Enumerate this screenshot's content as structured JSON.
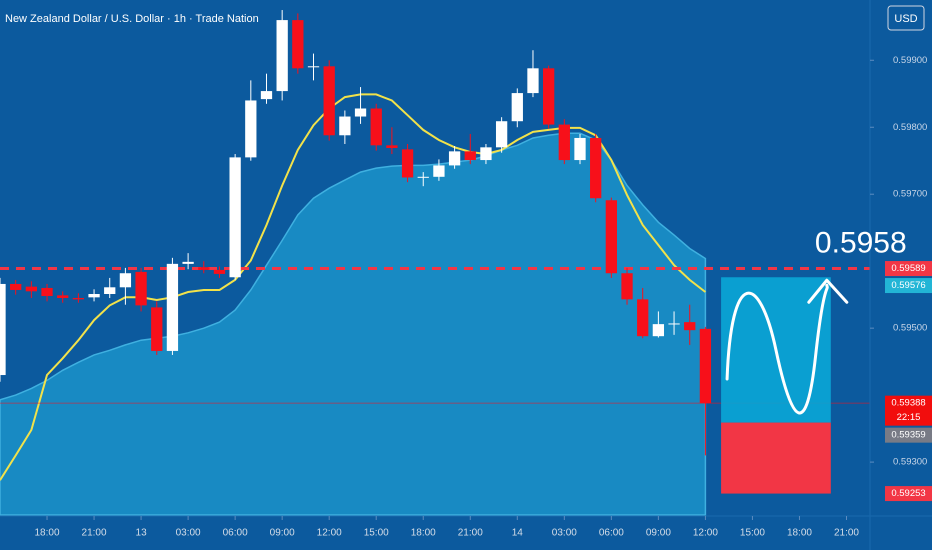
{
  "chart_data": {
    "type": "candlestick",
    "title": "New Zealand Dollar / U.S. Dollar · 1h · Trade Nation",
    "currency": "USD",
    "x": [
      -3,
      -2,
      -1,
      0,
      1,
      2,
      3,
      4,
      5,
      6,
      7,
      8,
      9,
      10,
      11,
      12,
      13,
      14,
      15,
      16,
      17,
      18,
      19,
      20,
      21,
      22,
      23,
      24,
      25,
      26,
      27,
      28,
      29,
      30,
      31,
      32,
      33,
      34,
      35,
      36,
      37,
      38,
      39,
      40,
      41,
      42
    ],
    "open": [
      0.5943,
      0.59566,
      0.59562,
      0.5956,
      0.59549,
      0.59545,
      0.59546,
      0.59551,
      0.59561,
      0.59584,
      0.59531,
      0.59466,
      0.59596,
      0.59591,
      0.59587,
      0.59576,
      0.59755,
      0.59842,
      0.59854,
      0.5996,
      0.5989,
      0.59891,
      0.59788,
      0.59816,
      0.59828,
      0.59773,
      0.59767,
      0.59725,
      0.59726,
      0.59743,
      0.59764,
      0.59751,
      0.5977,
      0.59809,
      0.59851,
      0.59888,
      0.59804,
      0.59751,
      0.59784,
      0.59691,
      0.59582,
      0.59543,
      0.59488,
      0.59506,
      0.59509,
      0.59499
    ],
    "high": [
      0.59575,
      0.59572,
      0.5957,
      0.59566,
      0.59555,
      0.59552,
      0.59558,
      0.59575,
      0.5959,
      0.5959,
      0.5954,
      0.59605,
      0.59612,
      0.596,
      0.59592,
      0.5976,
      0.5987,
      0.5988,
      0.59975,
      0.5997,
      0.5991,
      0.599,
      0.59825,
      0.5986,
      0.59835,
      0.598,
      0.59775,
      0.59733,
      0.59752,
      0.59772,
      0.5979,
      0.59775,
      0.59815,
      0.59858,
      0.59915,
      0.59892,
      0.59812,
      0.5979,
      0.5979,
      0.59695,
      0.5959,
      0.5956,
      0.59525,
      0.59525,
      0.59535,
      0.59502
    ],
    "low": [
      0.5942,
      0.5955,
      0.59545,
      0.5954,
      0.59538,
      0.59538,
      0.5954,
      0.59545,
      0.59535,
      0.59525,
      0.5946,
      0.5946,
      0.59588,
      0.59582,
      0.59575,
      0.59572,
      0.5975,
      0.59835,
      0.5984,
      0.5988,
      0.5987,
      0.5978,
      0.59775,
      0.59805,
      0.59765,
      0.5976,
      0.59718,
      0.59712,
      0.5972,
      0.59738,
      0.59745,
      0.59745,
      0.59762,
      0.598,
      0.59845,
      0.59798,
      0.59745,
      0.59745,
      0.59688,
      0.59575,
      0.59535,
      0.59485,
      0.59486,
      0.5949,
      0.59475,
      0.5931
    ],
    "close": [
      0.59566,
      0.59557,
      0.59555,
      0.59548,
      0.59545,
      0.59543,
      0.59551,
      0.59561,
      0.59582,
      0.59534,
      0.59466,
      0.59596,
      0.59599,
      0.59587,
      0.59581,
      0.59755,
      0.5984,
      0.59854,
      0.5996,
      0.59888,
      0.59891,
      0.59788,
      0.59816,
      0.59828,
      0.59773,
      0.59769,
      0.59725,
      0.59726,
      0.59743,
      0.59764,
      0.59751,
      0.5977,
      0.59809,
      0.59851,
      0.59888,
      0.59804,
      0.59751,
      0.59784,
      0.59694,
      0.59582,
      0.59543,
      0.59488,
      0.59506,
      0.59507,
      0.59497,
      0.59388
    ],
    "up_color": "#ffffff",
    "down_color": "#f7101a",
    "xlim": [
      -3,
      52.5
    ],
    "xticks": [
      {
        "value": 0,
        "label": "18:00"
      },
      {
        "value": 3,
        "label": "21:00"
      },
      {
        "value": 6,
        "label": "13"
      },
      {
        "value": 9,
        "label": "03:00"
      },
      {
        "value": 12,
        "label": "06:00"
      },
      {
        "value": 15,
        "label": "09:00"
      },
      {
        "value": 18,
        "label": "12:00"
      },
      {
        "value": 21,
        "label": "15:00"
      },
      {
        "value": 24,
        "label": "18:00"
      },
      {
        "value": 27,
        "label": "21:00"
      },
      {
        "value": 30,
        "label": "14"
      },
      {
        "value": 33,
        "label": "03:00"
      },
      {
        "value": 36,
        "label": "06:00"
      },
      {
        "value": 39,
        "label": "09:00"
      },
      {
        "value": 42,
        "label": "12:00"
      },
      {
        "value": 45,
        "label": "15:00"
      },
      {
        "value": 48,
        "label": "18:00"
      },
      {
        "value": 51,
        "label": "21:00"
      }
    ],
    "ylim": [
      0.59221,
      0.5999
    ],
    "yticks": [
      {
        "value": 0.599,
        "label": "0.59900"
      },
      {
        "value": 0.598,
        "label": "0.59800"
      },
      {
        "value": 0.597,
        "label": "0.59700"
      },
      {
        "value": 0.595,
        "label": "0.59500"
      },
      {
        "value": 0.593,
        "label": "0.59300"
      }
    ],
    "overlays": [
      {
        "type": "area",
        "color": "#1b93c9",
        "values": [
          0.59393,
          0.594,
          0.5941,
          0.59422,
          0.59437,
          0.59449,
          0.5946,
          0.59467,
          0.59475,
          0.59482,
          0.59485,
          0.59488,
          0.59493,
          0.595,
          0.59509,
          0.59527,
          0.59557,
          0.59594,
          0.59631,
          0.59669,
          0.59694,
          0.59709,
          0.59721,
          0.59733,
          0.59739,
          0.59742,
          0.59743,
          0.59743,
          0.59745,
          0.59748,
          0.59751,
          0.59757,
          0.59766,
          0.59773,
          0.59784,
          0.59788,
          0.59791,
          0.59791,
          0.59781,
          0.59751,
          0.59713,
          0.59684,
          0.59658,
          0.59639,
          0.59619,
          0.59604
        ]
      },
      {
        "type": "line",
        "color": "#f2e24a",
        "values": [
          0.59273,
          0.5931,
          0.59348,
          0.5943,
          0.59455,
          0.59482,
          0.59512,
          0.59534,
          0.59546,
          0.59546,
          0.59542,
          0.59546,
          0.59554,
          0.59557,
          0.59557,
          0.59572,
          0.59601,
          0.59654,
          0.59713,
          0.59766,
          0.59803,
          0.59828,
          0.59845,
          0.59849,
          0.59849,
          0.5984,
          0.59818,
          0.59796,
          0.59781,
          0.5977,
          0.59763,
          0.5976,
          0.59766,
          0.59781,
          0.59793,
          0.59796,
          0.59799,
          0.59799,
          0.59788,
          0.59751,
          0.59699,
          0.59654,
          0.59624,
          0.59594,
          0.59572,
          0.59554
        ]
      }
    ],
    "level_line": {
      "value": 0.59589,
      "color": "#f23645"
    },
    "price_tags": [
      {
        "value": 0.59589,
        "color": "#f23645"
      },
      {
        "value": 0.59576,
        "color": "#22b5d6"
      },
      {
        "value": 0.59388,
        "color": "#f20d0d",
        "countdown": "22:15"
      },
      {
        "value": 0.59359,
        "color": "#787b86"
      },
      {
        "value": 0.59253,
        "color": "#f23645"
      }
    ],
    "projection": {
      "x": [
        43,
        50
      ],
      "top": 0.59576,
      "mid": 0.59359,
      "bottom": 0.59253,
      "top_color": "#0aa6d6",
      "bottom_color": "#f23645"
    },
    "annotation": "0.5958"
  }
}
